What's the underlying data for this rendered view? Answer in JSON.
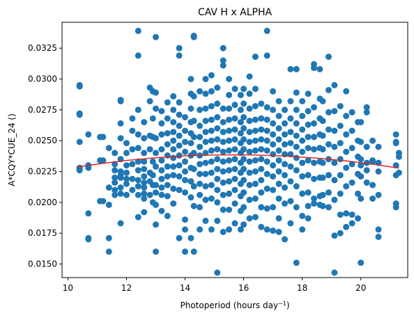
{
  "chart_data": {
    "type": "scatter",
    "title": "CAV H x ALPHA",
    "xlabel": "Photoperiod (hours day",
    "xlabel_sup": "−1",
    "xlabel_end": ")",
    "ylabel": "A*CQY*CUE_24 ()",
    "xlim": [
      9.8,
      21.6
    ],
    "ylim": [
      0.0139,
      0.0346
    ],
    "xticks": [
      10,
      12,
      14,
      16,
      18,
      20
    ],
    "yticks": [
      0.015,
      0.0175,
      0.02,
      0.0225,
      0.025,
      0.0275,
      0.03,
      0.0325
    ],
    "xtick_labels": [
      "10",
      "12",
      "14",
      "16",
      "18",
      "20"
    ],
    "ytick_labels": [
      "0.0150",
      "0.0175",
      "0.0200",
      "0.0225",
      "0.0250",
      "0.0275",
      "0.0300",
      "0.0325"
    ],
    "grid": false,
    "colors": {
      "points": "#1f77b4",
      "fit": "#d62728"
    },
    "fit_curve": {
      "x": [
        10.3,
        11.0,
        12.0,
        13.0,
        14.0,
        15.0,
        15.8,
        16.5,
        17.5,
        18.5,
        19.5,
        20.5,
        21.3
      ],
      "y": [
        0.02285,
        0.0231,
        0.0234,
        0.02362,
        0.02377,
        0.02384,
        0.02385,
        0.02383,
        0.02374,
        0.02358,
        0.02336,
        0.02306,
        0.02278
      ]
    },
    "series": [
      {
        "x": [
          10.4,
          10.4,
          10.4,
          10.4,
          10.4,
          10.4,
          10.4,
          10.4,
          10.7,
          10.7,
          10.7,
          10.7,
          10.7,
          10.7,
          11.1,
          11.1,
          11.1,
          11.2,
          11.2,
          11.2,
          11.4,
          11.4,
          11.4,
          11.4,
          11.4,
          11.6,
          11.6,
          11.6,
          11.6,
          11.6,
          11.6,
          11.6,
          11.8,
          11.8,
          11.8,
          11.8,
          11.8,
          11.8,
          11.8,
          11.8,
          11.8,
          11.8,
          11.8,
          12.0,
          12.0,
          12.0,
          12.0,
          12.0,
          12.0,
          12.0,
          12.2,
          12.2,
          12.2,
          12.2,
          12.2,
          12.2,
          12.4,
          12.4,
          12.4,
          12.4,
          12.4,
          12.4,
          12.4,
          12.4,
          12.4,
          12.4,
          12.4,
          12.6,
          12.6,
          12.6,
          12.6,
          12.6,
          12.6,
          12.6,
          12.6,
          12.6,
          12.6,
          12.6,
          12.8,
          12.8,
          12.8,
          12.8,
          12.8,
          12.8,
          12.8,
          12.9,
          12.9,
          12.9,
          12.9,
          12.9,
          12.9,
          12.9,
          13.0,
          13.0,
          13.0,
          13.0,
          13.0,
          13.0,
          13.0,
          13.0,
          13.0,
          13.0,
          13.0,
          13.2,
          13.2,
          13.2,
          13.2,
          13.2,
          13.2,
          13.2,
          13.2,
          13.2,
          13.2,
          13.4,
          13.4,
          13.4,
          13.4,
          13.4,
          13.4,
          13.4,
          13.4,
          13.4,
          13.4,
          13.6,
          13.6,
          13.6,
          13.6,
          13.6,
          13.6,
          13.6,
          13.6,
          13.6,
          13.6,
          13.6,
          13.8,
          13.8,
          13.8,
          13.8,
          13.8,
          13.8,
          13.8,
          13.8,
          13.8,
          13.8,
          13.8,
          13.8,
          14.0,
          14.0,
          14.0,
          14.0,
          14.0,
          14.0,
          14.0,
          14.0,
          14.0,
          14.0,
          14.0,
          14.2,
          14.2,
          14.2,
          14.2,
          14.2,
          14.2,
          14.2,
          14.2,
          14.2,
          14.2,
          14.2,
          14.3,
          14.3,
          14.3,
          14.3,
          14.3,
          14.3,
          14.3,
          14.3,
          14.3,
          14.3,
          14.5,
          14.5,
          14.5,
          14.5,
          14.5,
          14.5,
          14.5,
          14.5,
          14.5,
          14.5,
          14.5,
          14.5,
          14.7,
          14.7,
          14.7,
          14.7,
          14.7,
          14.7,
          14.7,
          14.7,
          14.7,
          14.7,
          14.7,
          14.7,
          14.9,
          14.9,
          14.9,
          14.9,
          14.9,
          14.9,
          14.9,
          14.9,
          14.9,
          14.9,
          14.9,
          14.9,
          15.1,
          15.1,
          15.1,
          15.1,
          15.1,
          15.1,
          15.1,
          15.1,
          15.1,
          15.1,
          15.1,
          15.1,
          15.1,
          15.3,
          15.3,
          15.3,
          15.3,
          15.3,
          15.3,
          15.3,
          15.3,
          15.3,
          15.3,
          15.3,
          15.3,
          15.3,
          15.3,
          15.5,
          15.5,
          15.5,
          15.5,
          15.5,
          15.5,
          15.5,
          15.5,
          15.5,
          15.5,
          15.5,
          15.5,
          15.5,
          15.7,
          15.7,
          15.7,
          15.7,
          15.7,
          15.7,
          15.7,
          15.7,
          15.7,
          15.7,
          15.7,
          15.7,
          15.9,
          15.9,
          15.9,
          15.9,
          15.9,
          15.9,
          15.9,
          15.9,
          15.9,
          15.9,
          15.9,
          15.9,
          16.0,
          16.0,
          16.0,
          16.0,
          16.0,
          16.0,
          16.0,
          16.0,
          16.0,
          16.0,
          16.0,
          16.0,
          16.2,
          16.2,
          16.2,
          16.2,
          16.2,
          16.2,
          16.2,
          16.2,
          16.2,
          16.2,
          16.2,
          16.2,
          16.4,
          16.4,
          16.4,
          16.4,
          16.4,
          16.4,
          16.4,
          16.4,
          16.4,
          16.4,
          16.4,
          16.4,
          16.6,
          16.6,
          16.6,
          16.6,
          16.6,
          16.6,
          16.6,
          16.6,
          16.6,
          16.6,
          16.6,
          16.8,
          16.8,
          16.8,
          16.8,
          16.8,
          16.8,
          16.8,
          16.8,
          16.8,
          16.8,
          16.8,
          16.8,
          17.0,
          17.0,
          17.0,
          17.0,
          17.0,
          17.0,
          17.0,
          17.0,
          17.0,
          17.0,
          17.0,
          17.2,
          17.2,
          17.2,
          17.2,
          17.2,
          17.2,
          17.2,
          17.2,
          17.2,
          17.2,
          17.2,
          17.4,
          17.4,
          17.4,
          17.4,
          17.4,
          17.4,
          17.4,
          17.4,
          17.4,
          17.4,
          17.6,
          17.6,
          17.6,
          17.6,
          17.6,
          17.6,
          17.6,
          17.6,
          17.6,
          17.6,
          17.8,
          17.8,
          17.8,
          17.8,
          17.8,
          17.8,
          17.8,
          17.8,
          17.8,
          17.8,
          17.8,
          18.0,
          18.0,
          18.0,
          18.0,
          18.0,
          18.0,
          18.0,
          18.0,
          18.0,
          18.0,
          18.2,
          18.2,
          18.2,
          18.2,
          18.2,
          18.2,
          18.2,
          18.2,
          18.2,
          18.2,
          18.4,
          18.4,
          18.4,
          18.4,
          18.4,
          18.4,
          18.4,
          18.4,
          18.4,
          18.4,
          18.6,
          18.6,
          18.6,
          18.6,
          18.6,
          18.6,
          18.6,
          18.6,
          18.6,
          18.7,
          18.7,
          18.7,
          18.7,
          18.7,
          18.7,
          18.7,
          18.7,
          18.9,
          18.9,
          18.9,
          18.9,
          18.9,
          18.9,
          18.9,
          18.9,
          18.9,
          19.1,
          19.1,
          19.1,
          19.1,
          19.1,
          19.1,
          19.1,
          19.1,
          19.1,
          19.3,
          19.3,
          19.3,
          19.3,
          19.3,
          19.3,
          19.3,
          19.3,
          19.5,
          19.5,
          19.5,
          19.5,
          19.5,
          19.5,
          19.5,
          19.5,
          19.7,
          19.7,
          19.7,
          19.7,
          19.7,
          19.7,
          19.7,
          19.9,
          19.9,
          19.9,
          19.9,
          19.9,
          19.9,
          20.0,
          20.0,
          20.0,
          20.0,
          20.0,
          20.0,
          20.0,
          20.2,
          20.2,
          20.2,
          20.2,
          20.2,
          20.2,
          20.4,
          20.4,
          20.4,
          20.4,
          20.4,
          20.6,
          20.6,
          20.6,
          20.6,
          20.6,
          20.6,
          21.2,
          21.2,
          21.2,
          21.2,
          21.2,
          21.2,
          21.2,
          21.3,
          21.3,
          21.3
        ],
        "y": [
          0.0295,
          0.0294,
          0.0272,
          0.0271,
          0.0249,
          0.0228,
          0.0227,
          0.0226,
          0.0255,
          0.023,
          0.0228,
          0.0191,
          0.0171,
          0.017,
          0.0253,
          0.0234,
          0.0201,
          0.0253,
          0.0234,
          0.0201,
          0.0244,
          0.0212,
          0.0198,
          0.0171,
          0.016,
          0.024,
          0.0231,
          0.0226,
          0.022,
          0.0216,
          0.021,
          0.0206,
          0.0283,
          0.0282,
          0.0264,
          0.0252,
          0.0235,
          0.0225,
          0.0222,
          0.022,
          0.0212,
          0.0207,
          0.0183,
          0.0248,
          0.024,
          0.023,
          0.0224,
          0.0219,
          0.0215,
          0.0206,
          0.0268,
          0.0258,
          0.0243,
          0.0231,
          0.0219,
          0.021,
          0.0339,
          0.0319,
          0.0275,
          0.0255,
          0.0244,
          0.0233,
          0.0226,
          0.0218,
          0.0213,
          0.0206,
          0.0188,
          0.0265,
          0.0252,
          0.024,
          0.0233,
          0.0227,
          0.0221,
          0.0216,
          0.0212,
          0.0207,
          0.0203,
          0.0192,
          0.0293,
          0.0282,
          0.0254,
          0.0243,
          0.0224,
          0.0217,
          0.0206,
          0.029,
          0.0268,
          0.0253,
          0.0233,
          0.0222,
          0.0214,
          0.02,
          0.0334,
          0.0289,
          0.0276,
          0.0252,
          0.024,
          0.0229,
          0.0214,
          0.0208,
          0.0198,
          0.0182,
          0.016,
          0.0274,
          0.0264,
          0.0255,
          0.0243,
          0.0234,
          0.0226,
          0.0219,
          0.0212,
          0.0206,
          0.0193,
          0.0281,
          0.0268,
          0.0256,
          0.0247,
          0.0238,
          0.0229,
          0.0221,
          0.0214,
          0.0205,
          0.0189,
          0.0286,
          0.0275,
          0.0265,
          0.0257,
          0.025,
          0.0243,
          0.0236,
          0.0229,
          0.0222,
          0.0211,
          0.0199,
          0.0325,
          0.0319,
          0.0281,
          0.0271,
          0.0262,
          0.0254,
          0.0246,
          0.0238,
          0.023,
          0.0221,
          0.021,
          0.0171,
          0.0269,
          0.0258,
          0.0249,
          0.0241,
          0.0233,
          0.0225,
          0.0218,
          0.0208,
          0.0186,
          0.0178,
          0.016,
          0.03,
          0.0288,
          0.0276,
          0.0265,
          0.0256,
          0.0248,
          0.0238,
          0.0228,
          0.0217,
          0.0204,
          0.0171,
          0.0335,
          0.0334,
          0.0286,
          0.0266,
          0.0253,
          0.024,
          0.0227,
          0.0213,
          0.0197,
          0.016,
          0.029,
          0.0275,
          0.0262,
          0.0253,
          0.0245,
          0.0238,
          0.0231,
          0.0223,
          0.0215,
          0.0206,
          0.0196,
          0.0178,
          0.03,
          0.0288,
          0.0276,
          0.0266,
          0.0257,
          0.0249,
          0.024,
          0.0232,
          0.0223,
          0.0213,
          0.0202,
          0.0185,
          0.0303,
          0.029,
          0.0278,
          0.0267,
          0.0258,
          0.025,
          0.0242,
          0.0233,
          0.0224,
          0.0214,
          0.0203,
          0.0178,
          0.0293,
          0.028,
          0.0269,
          0.026,
          0.0251,
          0.0243,
          0.0235,
          0.0227,
          0.0219,
          0.021,
          0.02,
          0.0185,
          0.0143,
          0.0325,
          0.0315,
          0.0311,
          0.0276,
          0.0265,
          0.0257,
          0.0249,
          0.0241,
          0.0233,
          0.0225,
          0.0216,
          0.0206,
          0.0194,
          0.0176,
          0.03,
          0.0287,
          0.0276,
          0.0267,
          0.0258,
          0.025,
          0.0242,
          0.0234,
          0.0226,
          0.0217,
          0.0207,
          0.0194,
          0.0178,
          0.0292,
          0.0279,
          0.0268,
          0.0259,
          0.0251,
          0.0243,
          0.0235,
          0.0227,
          0.0219,
          0.021,
          0.0199,
          0.0183,
          0.0287,
          0.0275,
          0.0265,
          0.0256,
          0.0248,
          0.024,
          0.0232,
          0.0224,
          0.0215,
          0.0205,
          0.0193,
          0.0178,
          0.0292,
          0.028,
          0.0269,
          0.026,
          0.0251,
          0.0243,
          0.0235,
          0.0227,
          0.0218,
          0.0208,
          0.0196,
          0.0182,
          0.0302,
          0.0288,
          0.0276,
          0.0266,
          0.0257,
          0.0249,
          0.0241,
          0.0233,
          0.0224,
          0.0214,
          0.0202,
          0.0187,
          0.0318,
          0.0292,
          0.0278,
          0.0267,
          0.0258,
          0.025,
          0.0242,
          0.0234,
          0.0225,
          0.0215,
          0.0203,
          0.0188,
          0.028,
          0.0268,
          0.0259,
          0.0251,
          0.0243,
          0.0235,
          0.0227,
          0.0218,
          0.0208,
          0.0196,
          0.018,
          0.0339,
          0.0319,
          0.0277,
          0.0267,
          0.0258,
          0.025,
          0.0242,
          0.0233,
          0.0223,
          0.0211,
          0.0195,
          0.0178,
          0.029,
          0.0275,
          0.0264,
          0.0255,
          0.0247,
          0.0239,
          0.023,
          0.0221,
          0.021,
          0.0196,
          0.0177,
          0.0282,
          0.027,
          0.026,
          0.0251,
          0.0242,
          0.0234,
          0.0225,
          0.0215,
          0.0203,
          0.0187,
          0.0176,
          0.0275,
          0.0264,
          0.0255,
          0.0247,
          0.0239,
          0.0231,
          0.0222,
          0.0212,
          0.0199,
          0.017,
          0.0308,
          0.0282,
          0.0268,
          0.0257,
          0.0248,
          0.0239,
          0.0229,
          0.0217,
          0.0201,
          0.0183,
          0.0308,
          0.0289,
          0.0275,
          0.0264,
          0.0254,
          0.0245,
          0.0236,
          0.0226,
          0.0213,
          0.0196,
          0.0151,
          0.0282,
          0.027,
          0.0259,
          0.025,
          0.0241,
          0.0232,
          0.0221,
          0.0207,
          0.0189,
          0.0178,
          0.0288,
          0.0274,
          0.0263,
          0.0253,
          0.0244,
          0.0234,
          0.0222,
          0.0208,
          0.0197,
          0.0187,
          0.0312,
          0.0309,
          0.0277,
          0.0264,
          0.0253,
          0.0243,
          0.0232,
          0.0219,
          0.0203,
          0.0199,
          0.0308,
          0.0284,
          0.0268,
          0.0255,
          0.0244,
          0.0233,
          0.022,
          0.0205,
          0.0198,
          0.0282,
          0.0266,
          0.0254,
          0.0243,
          0.0232,
          0.022,
          0.0206,
          0.0197,
          0.0318,
          0.0291,
          0.0273,
          0.0259,
          0.0247,
          0.0235,
          0.0222,
          0.0208,
          0.0196,
          0.0295,
          0.0274,
          0.0258,
          0.0245,
          0.0232,
          0.0218,
          0.0202,
          0.0173,
          0.0143,
          0.0278,
          0.0262,
          0.0248,
          0.0235,
          0.0222,
          0.0207,
          0.019,
          0.0175,
          0.029,
          0.027,
          0.0255,
          0.0241,
          0.0228,
          0.0213,
          0.0191,
          0.018,
          0.0273,
          0.0258,
          0.0244,
          0.0231,
          0.0216,
          0.019,
          0.0183,
          0.0265,
          0.025,
          0.0237,
          0.0223,
          0.0207,
          0.0187,
          0.0265,
          0.0249,
          0.0235,
          0.023,
          0.0221,
          0.0203,
          0.0151,
          0.0277,
          0.0273,
          0.0245,
          0.0232,
          0.0226,
          0.0216,
          0.025,
          0.0234,
          0.0233,
          0.0214,
          0.0203,
          0.0245,
          0.0232,
          0.0225,
          0.0206,
          0.0178,
          0.0172,
          0.0255,
          0.0249,
          0.0248,
          0.023,
          0.0222,
          0.0199,
          0.0196,
          0.024,
          0.0237,
          0.0224
        ]
      }
    ]
  }
}
